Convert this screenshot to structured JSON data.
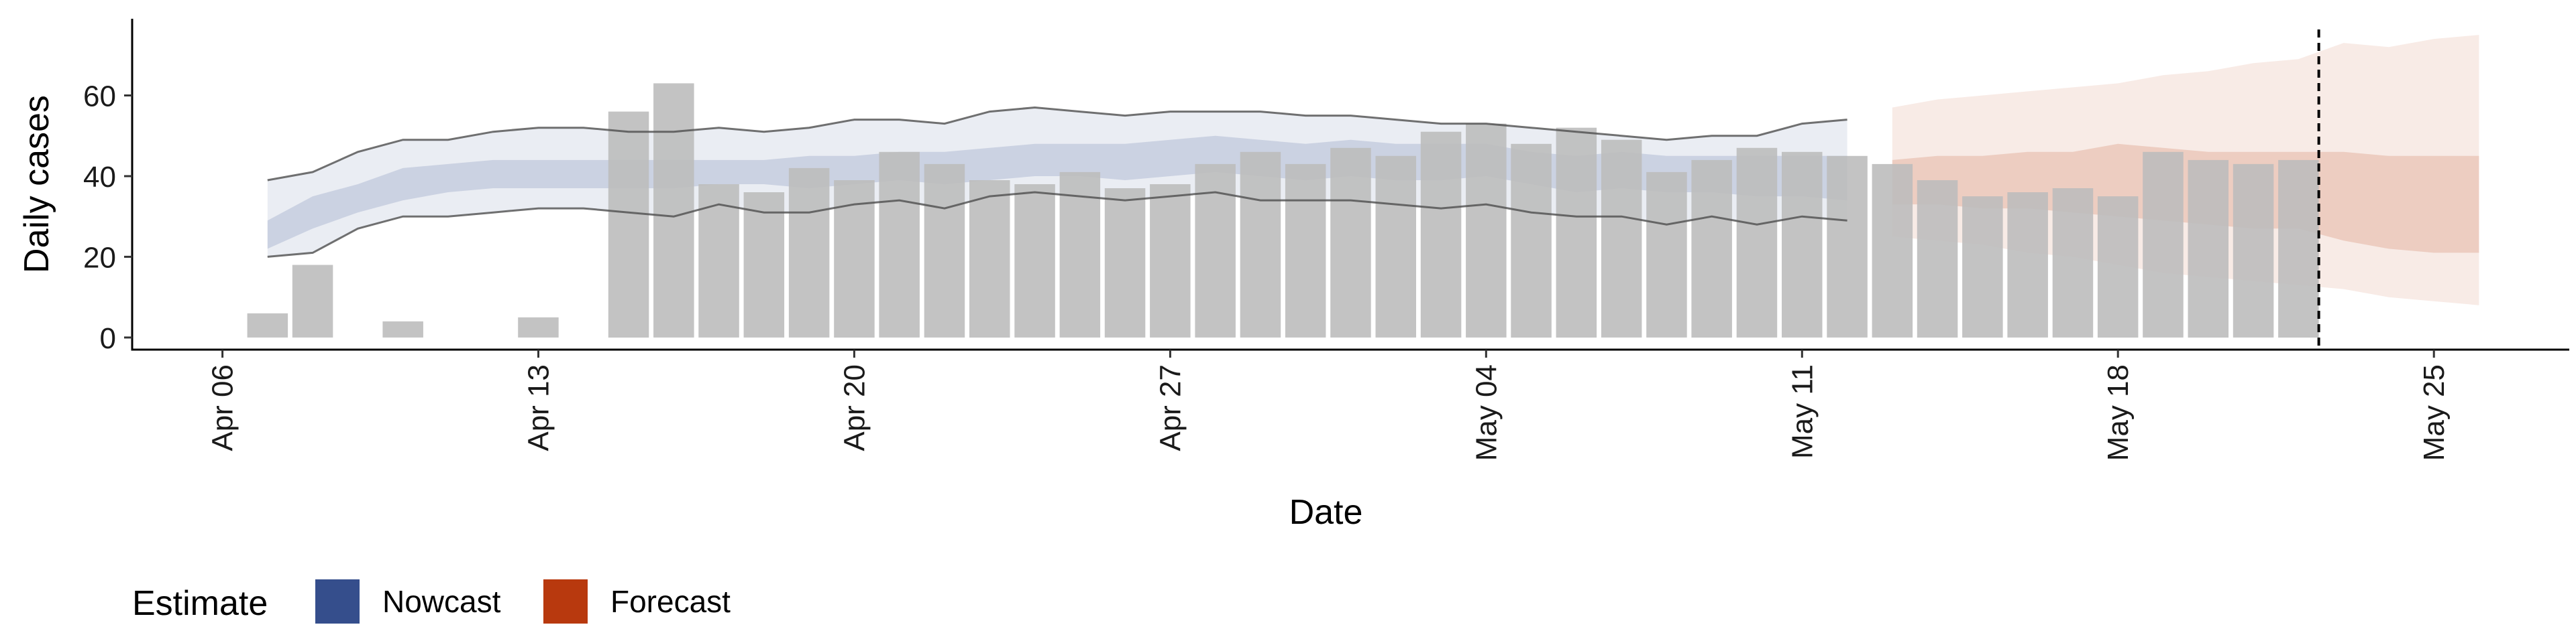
{
  "chart_data": {
    "type": "bar",
    "xlabel": "Date",
    "ylabel": "Daily cases",
    "y_ticks": [
      0,
      20,
      40,
      60
    ],
    "x_ticks": [
      {
        "date": "2020-04-06",
        "label": "Apr 06"
      },
      {
        "date": "2020-04-13",
        "label": "Apr 13"
      },
      {
        "date": "2020-04-20",
        "label": "Apr 20"
      },
      {
        "date": "2020-04-27",
        "label": "Apr 27"
      },
      {
        "date": "2020-05-04",
        "label": "May 04"
      },
      {
        "date": "2020-05-11",
        "label": "May 11"
      },
      {
        "date": "2020-05-18",
        "label": "May 18"
      },
      {
        "date": "2020-05-25",
        "label": "May 25"
      }
    ],
    "ylim": [
      -3,
      79
    ],
    "xlim": [
      "2020-04-04",
      "2020-05-28"
    ],
    "grid": false,
    "legend": {
      "title": "Estimate",
      "position": "bottom-left",
      "items": [
        {
          "label": "Nowcast",
          "color": "#354e8c"
        },
        {
          "label": "Forecast",
          "color": "#b8390e"
        }
      ]
    },
    "reference_line": {
      "date": "2020-05-22",
      "style": "dashed"
    },
    "bars": {
      "color": "#bdbdbd",
      "dates": [
        "2020-04-07",
        "2020-04-08",
        "2020-04-10",
        "2020-04-13",
        "2020-04-15",
        "2020-04-16",
        "2020-04-17",
        "2020-04-18",
        "2020-04-19",
        "2020-04-20",
        "2020-04-21",
        "2020-04-22",
        "2020-04-23",
        "2020-04-24",
        "2020-04-25",
        "2020-04-26",
        "2020-04-27",
        "2020-04-28",
        "2020-04-29",
        "2020-04-30",
        "2020-05-01",
        "2020-05-02",
        "2020-05-03",
        "2020-05-04",
        "2020-05-05",
        "2020-05-06",
        "2020-05-07",
        "2020-05-08",
        "2020-05-09",
        "2020-05-10",
        "2020-05-11",
        "2020-05-12",
        "2020-05-13",
        "2020-05-14",
        "2020-05-15",
        "2020-05-16",
        "2020-05-17",
        "2020-05-18",
        "2020-05-19",
        "2020-05-20",
        "2020-05-21",
        "2020-05-22"
      ],
      "values": [
        6,
        18,
        4,
        5,
        56,
        63,
        38,
        36,
        42,
        39,
        46,
        43,
        39,
        38,
        41,
        37,
        38,
        43,
        46,
        43,
        47,
        45,
        51,
        53,
        48,
        52,
        49,
        41,
        44,
        47,
        46,
        45,
        43,
        39,
        35,
        36,
        37,
        35,
        46,
        44,
        43,
        44
      ]
    },
    "series": [
      {
        "name": "Nowcast",
        "color": "#354e8c",
        "dates": [
          "2020-04-07",
          "2020-04-08",
          "2020-04-09",
          "2020-04-10",
          "2020-04-11",
          "2020-04-12",
          "2020-04-13",
          "2020-04-14",
          "2020-04-15",
          "2020-04-16",
          "2020-04-17",
          "2020-04-18",
          "2020-04-19",
          "2020-04-20",
          "2020-04-21",
          "2020-04-22",
          "2020-04-23",
          "2020-04-24",
          "2020-04-25",
          "2020-04-26",
          "2020-04-27",
          "2020-04-28",
          "2020-04-29",
          "2020-04-30",
          "2020-05-01",
          "2020-05-02",
          "2020-05-03",
          "2020-05-04",
          "2020-05-05",
          "2020-05-06",
          "2020-05-07",
          "2020-05-08",
          "2020-05-09",
          "2020-05-10",
          "2020-05-11",
          "2020-05-12"
        ],
        "lower90": [
          20,
          21,
          27,
          30,
          30,
          31,
          32,
          32,
          31,
          30,
          33,
          31,
          31,
          33,
          34,
          32,
          35,
          36,
          35,
          34,
          35,
          36,
          34,
          34,
          34,
          33,
          32,
          33,
          31,
          30,
          30,
          28,
          30,
          28,
          30,
          29
        ],
        "lower50": [
          22,
          27,
          31,
          34,
          36,
          37,
          37,
          37,
          37,
          37,
          38,
          38,
          37,
          38,
          39,
          38,
          39,
          40,
          40,
          39,
          40,
          41,
          40,
          39,
          40,
          39,
          39,
          40,
          38,
          36,
          37,
          36,
          36,
          35,
          35,
          34
        ],
        "upper50": [
          29,
          35,
          38,
          42,
          43,
          44,
          44,
          44,
          44,
          44,
          44,
          44,
          45,
          45,
          46,
          46,
          47,
          48,
          48,
          48,
          49,
          50,
          49,
          48,
          49,
          48,
          48,
          48,
          46,
          45,
          46,
          45,
          45,
          45,
          45,
          45
        ],
        "upper90": [
          39,
          41,
          46,
          49,
          49,
          51,
          52,
          52,
          51,
          51,
          52,
          51,
          52,
          54,
          54,
          53,
          56,
          57,
          56,
          55,
          56,
          56,
          56,
          55,
          55,
          54,
          53,
          53,
          52,
          51,
          50,
          49,
          50,
          50,
          53,
          54
        ]
      },
      {
        "name": "Forecast",
        "color": "#b8390e",
        "dates": [
          "2020-05-13",
          "2020-05-14",
          "2020-05-15",
          "2020-05-16",
          "2020-05-17",
          "2020-05-18",
          "2020-05-19",
          "2020-05-20",
          "2020-05-21",
          "2020-05-22",
          "2020-05-23",
          "2020-05-24",
          "2020-05-25",
          "2020-05-26"
        ],
        "lower90": [
          25,
          24,
          23,
          21,
          20,
          18,
          16,
          15,
          14,
          13,
          12,
          10,
          9,
          8
        ],
        "lower50": [
          33,
          33,
          32,
          32,
          31,
          30,
          29,
          28,
          27,
          27,
          24,
          22,
          21,
          21
        ],
        "upper50": [
          44,
          45,
          45,
          46,
          46,
          48,
          47,
          46,
          46,
          46,
          46,
          45,
          45,
          45
        ],
        "upper90": [
          57,
          59,
          60,
          61,
          62,
          63,
          65,
          66,
          68,
          69,
          73,
          72,
          74,
          75
        ]
      }
    ]
  }
}
